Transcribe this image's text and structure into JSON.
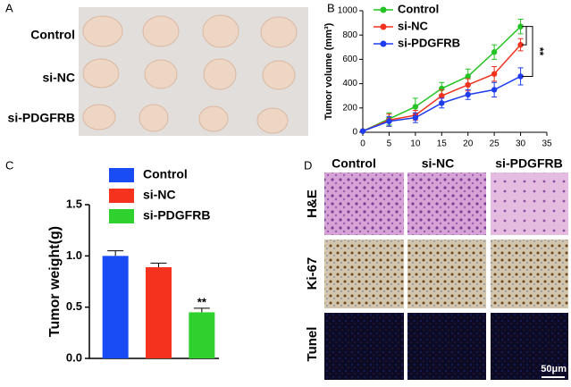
{
  "panel_labels": [
    "A",
    "B",
    "C",
    "D"
  ],
  "panel_a": {
    "rows": [
      "Control",
      "si-NC",
      "si-PDGFRB"
    ]
  },
  "panel_d": {
    "columns": [
      "Control",
      "si-NC",
      "si-PDGFRB"
    ],
    "rows": [
      "H&E",
      "Ki-67",
      "Tunel"
    ],
    "scale_bar": "50μm"
  },
  "chart_data": [
    {
      "type": "line",
      "y_label": "Tumor volume (mm³)",
      "x": [
        0,
        5,
        10,
        15,
        20,
        25,
        30
      ],
      "series": [
        {
          "name": "Control",
          "color": "#22c322",
          "values": [
            10,
            110,
            210,
            360,
            460,
            660,
            870
          ],
          "errors": [
            5,
            50,
            70,
            50,
            60,
            60,
            60
          ]
        },
        {
          "name": "si-NC",
          "color": "#f0321e",
          "values": [
            10,
            100,
            140,
            300,
            390,
            480,
            720
          ],
          "errors": [
            5,
            50,
            40,
            50,
            50,
            60,
            50
          ]
        },
        {
          "name": "si-PDGFRB",
          "color": "#1e3cf0",
          "values": [
            10,
            90,
            120,
            240,
            310,
            350,
            460
          ],
          "errors": [
            5,
            40,
            40,
            40,
            40,
            60,
            70
          ]
        }
      ],
      "xlim": [
        0,
        35
      ],
      "xticks": [
        0,
        5,
        10,
        15,
        20,
        25,
        30,
        35
      ],
      "ylim": [
        0,
        1000
      ],
      "yticks": [
        0,
        200,
        400,
        600,
        800,
        1000
      ],
      "legend": "upper-left",
      "annotation": "**"
    },
    {
      "type": "bar",
      "y_label": "Tumor weight(g)",
      "categories": [
        null,
        null,
        null
      ],
      "series": [
        {
          "name": "Control",
          "color": "#1a4cf5",
          "values": [
            1.0,
            null,
            null
          ],
          "errors": [
            0.05,
            null,
            null
          ]
        },
        {
          "name": "si-NC",
          "color": "#f5321e",
          "values": [
            null,
            0.89,
            null
          ],
          "errors": [
            null,
            0.04,
            null
          ]
        },
        {
          "name": "si-PDGFRB",
          "color": "#2ed12e",
          "values": [
            null,
            null,
            0.45
          ],
          "errors": [
            null,
            null,
            0.04
          ]
        }
      ],
      "ylim": [
        0,
        1.5
      ],
      "yticks": [
        {
          "value": 0,
          "label": "0.0"
        },
        0.5,
        {
          "value": 1.0,
          "label": "1.0"
        },
        1.5
      ],
      "legend": "upper-left",
      "annotation": "**"
    }
  ]
}
